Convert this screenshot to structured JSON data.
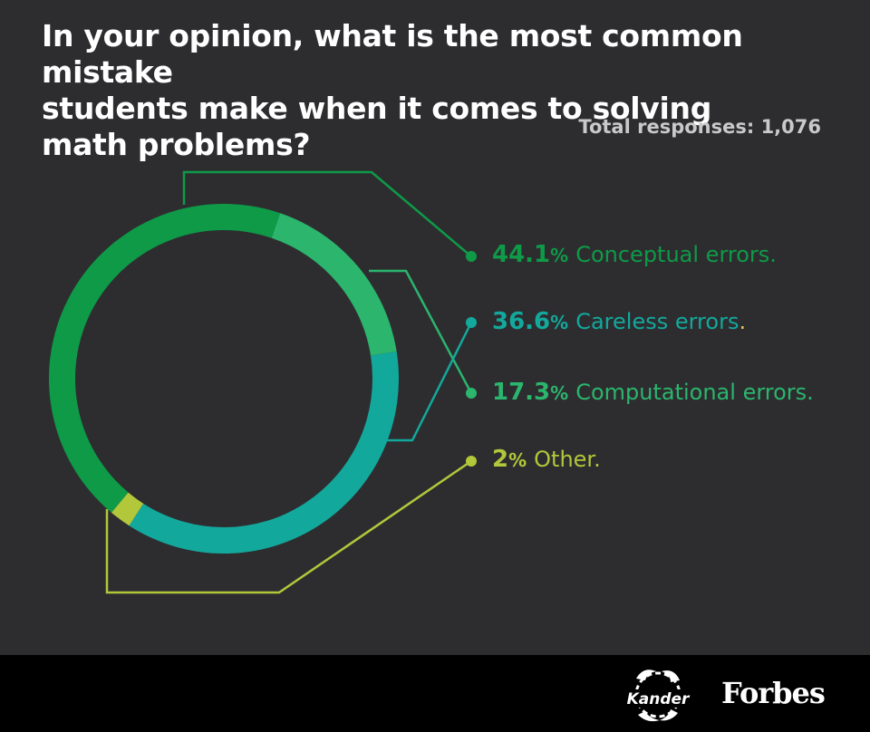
{
  "title_lines": [
    "In your opinion, what is the most common mistake",
    "students make when it comes to solving",
    "math problems?"
  ],
  "total_responses": "Total responses: 1,076",
  "chart_data": {
    "type": "pie",
    "donut": true,
    "title": "In your opinion, what is the most common mistake students make when it comes to solving math problems?",
    "total_responses": 1076,
    "slices": [
      {
        "pct_text": "44.1",
        "label": "Conceptual errors.",
        "value": 44.1,
        "color": "#0e9a47"
      },
      {
        "pct_text": "36.6",
        "label": "Careless errors",
        "trailing": ".",
        "value": 36.6,
        "color": "#13a89c"
      },
      {
        "pct_text": "17.3",
        "label": "Computational errors.",
        "value": 17.3,
        "color": "#2bb56d"
      },
      {
        "pct_text": "2",
        "label": "Other.",
        "value": 2.0,
        "color": "#b2c73a"
      }
    ],
    "legend_position": "right"
  },
  "footer": {
    "kander_logo_text": "Kander",
    "forbes_logo_text": "Forbes",
    "background": "#000000"
  }
}
